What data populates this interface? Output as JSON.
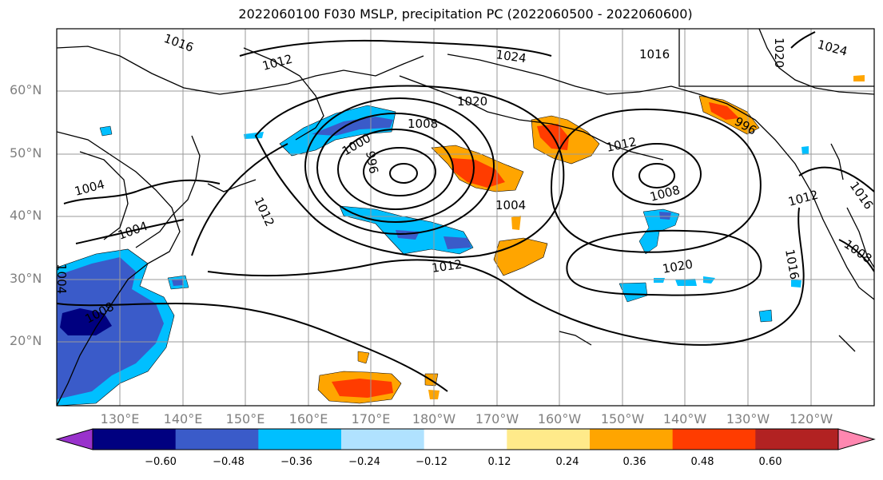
{
  "title": "2022060100 F030 MSLP, precipitation PC (2022060500 - 2022060600)",
  "latitude_labels": [
    "60°N",
    "50°N",
    "40°N",
    "30°N",
    "20°N"
  ],
  "longitude_labels": [
    "130°E",
    "140°E",
    "150°E",
    "160°E",
    "170°E",
    "180°W",
    "170°W",
    "160°W",
    "150°W",
    "140°W",
    "130°W",
    "120°W"
  ],
  "colorbar": {
    "ticks": [
      "−0.60",
      "−0.48",
      "−0.36",
      "−0.24",
      "−0.12",
      "0.12",
      "0.24",
      "0.36",
      "0.48",
      "0.60"
    ],
    "colors": [
      "#9932cc",
      "#000080",
      "#3a5bc9",
      "#00bfff",
      "#b0e2ff",
      "#ffffff",
      "#ffea8a",
      "#ffa500",
      "#ff3c00",
      "#b22222",
      "#ff87b0"
    ]
  },
  "isobar_labels": [
    "1016",
    "1012",
    "1024",
    "1016",
    "1020",
    "1024",
    "1020",
    "1008",
    "1000",
    "996",
    "1004",
    "1012",
    "1008",
    "1012",
    "1004",
    "1004",
    "1012",
    "1020",
    "1008",
    "1016",
    "1012",
    "1008",
    "1016",
    "1004",
    "996"
  ]
}
